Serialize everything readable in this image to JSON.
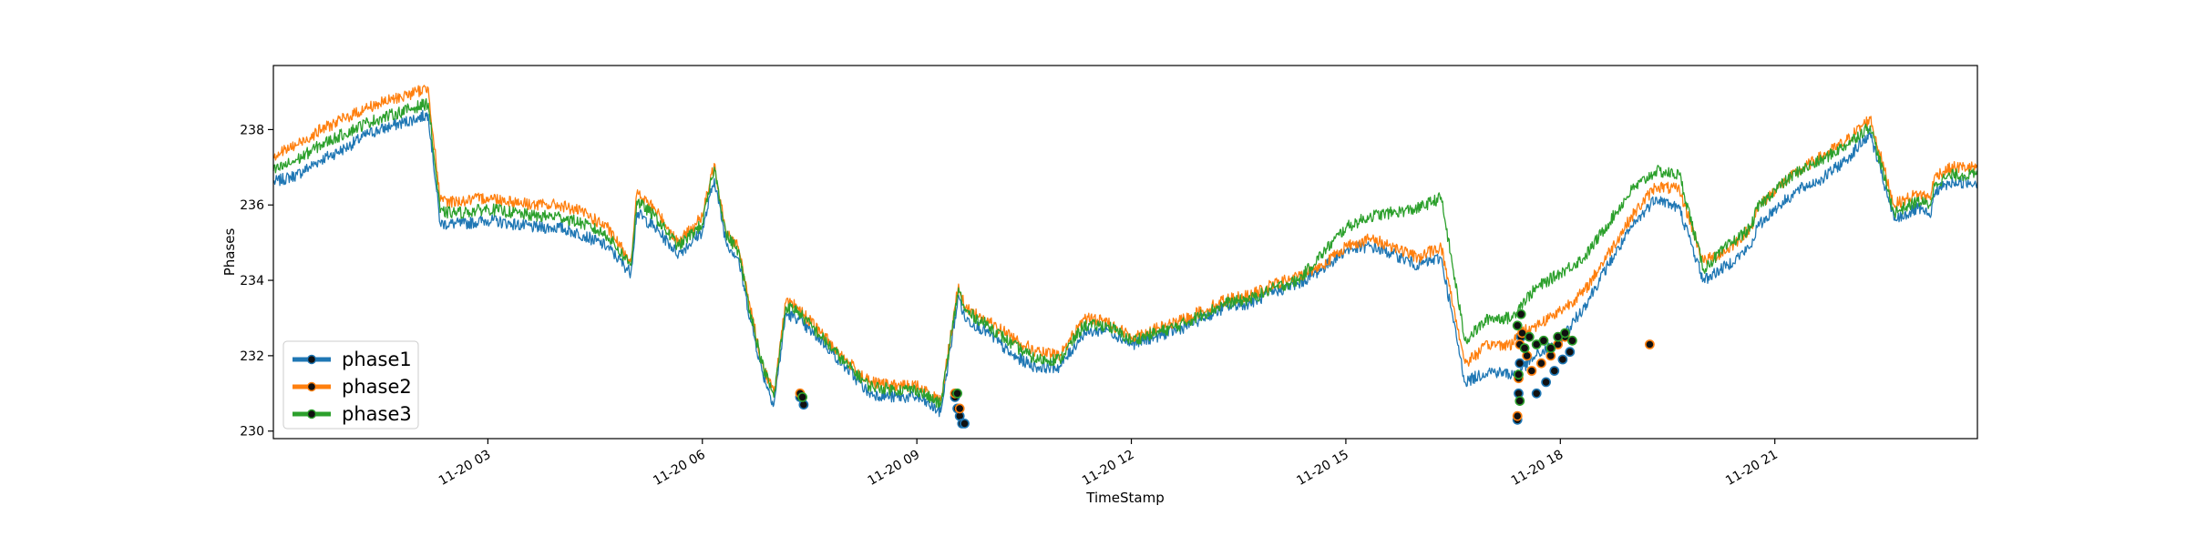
{
  "chart_data": {
    "type": "line",
    "xlabel": "TimeStamp",
    "ylabel": "Phases",
    "xlim": [
      "2021-11-20 00:00",
      "2021-11-20 23:50"
    ],
    "ylim": [
      229.8,
      239.7
    ],
    "x_ticks": [
      {
        "t": "2021-11-20 03:00",
        "label": "11-20 03"
      },
      {
        "t": "2021-11-20 06:00",
        "label": "11-20 06"
      },
      {
        "t": "2021-11-20 09:00",
        "label": "11-20 09"
      },
      {
        "t": "2021-11-20 12:00",
        "label": "11-20 12"
      },
      {
        "t": "2021-11-20 15:00",
        "label": "11-20 15"
      },
      {
        "t": "2021-11-20 18:00",
        "label": "11-20 18"
      },
      {
        "t": "2021-11-20 21:00",
        "label": "11-20 21"
      }
    ],
    "y_ticks": [
      230,
      232,
      234,
      236,
      238
    ],
    "grid": false,
    "legend_position": "lower-left",
    "x": [
      "00:00",
      "00:20",
      "00:40",
      "01:00",
      "01:20",
      "01:40",
      "02:00",
      "02:10",
      "02:20",
      "02:40",
      "03:00",
      "03:20",
      "03:40",
      "04:00",
      "04:20",
      "04:40",
      "05:00",
      "05:05",
      "05:20",
      "05:40",
      "06:00",
      "06:10",
      "06:20",
      "06:30",
      "06:40",
      "06:50",
      "07:00",
      "07:10",
      "07:20",
      "07:25",
      "07:40",
      "08:00",
      "08:20",
      "08:40",
      "09:00",
      "09:20",
      "09:35",
      "09:40",
      "10:00",
      "10:20",
      "10:40",
      "11:00",
      "11:20",
      "11:40",
      "12:00",
      "12:20",
      "12:40",
      "13:00",
      "13:20",
      "13:40",
      "14:00",
      "14:20",
      "14:40",
      "15:00",
      "15:20",
      "15:40",
      "16:00",
      "16:20",
      "16:40",
      "17:00",
      "17:20",
      "17:25",
      "17:40",
      "18:00",
      "18:20",
      "18:40",
      "19:00",
      "19:20",
      "19:40",
      "20:00",
      "20:20",
      "20:40",
      "20:45",
      "21:00",
      "21:20",
      "21:40",
      "22:00",
      "22:20",
      "22:40",
      "23:00",
      "23:10",
      "23:15",
      "23:30",
      "23:50"
    ],
    "series": [
      {
        "name": "phase1",
        "color": "#1f77b4",
        "values": [
          236.6,
          236.8,
          237.2,
          237.5,
          237.9,
          238.1,
          238.3,
          238.4,
          235.5,
          235.5,
          235.6,
          235.5,
          235.4,
          235.4,
          235.2,
          234.9,
          234.2,
          235.8,
          235.4,
          234.7,
          235.3,
          236.7,
          235.0,
          234.6,
          233.0,
          231.6,
          230.7,
          233.1,
          233.0,
          232.8,
          232.4,
          231.7,
          231.0,
          230.9,
          230.9,
          230.5,
          233.6,
          233.0,
          232.6,
          232.0,
          231.7,
          231.7,
          232.6,
          232.7,
          232.3,
          232.5,
          232.7,
          233.0,
          233.3,
          233.4,
          233.7,
          233.9,
          234.3,
          234.8,
          234.9,
          234.7,
          234.4,
          234.6,
          231.3,
          231.6,
          231.5,
          231.6,
          232.0,
          232.4,
          233.3,
          234.4,
          235.4,
          236.2,
          235.9,
          234.0,
          234.4,
          234.9,
          235.4,
          235.9,
          236.4,
          236.7,
          237.2,
          237.9,
          235.6,
          235.9,
          235.7,
          236.4,
          236.6,
          236.6
        ]
      },
      {
        "name": "phase2",
        "color": "#ff7f0e",
        "values": [
          237.3,
          237.6,
          238.0,
          238.3,
          238.6,
          238.8,
          239.0,
          239.1,
          236.1,
          236.1,
          236.2,
          236.1,
          236.0,
          236.0,
          235.8,
          235.4,
          234.5,
          236.3,
          235.9,
          235.0,
          235.7,
          237.1,
          235.3,
          234.9,
          233.3,
          231.8,
          231.0,
          233.4,
          233.3,
          233.1,
          232.6,
          231.9,
          231.3,
          231.2,
          231.2,
          230.8,
          233.9,
          233.3,
          232.9,
          232.5,
          232.1,
          232.0,
          233.0,
          232.9,
          232.5,
          232.7,
          232.9,
          233.2,
          233.5,
          233.6,
          233.9,
          234.1,
          234.4,
          234.9,
          235.1,
          234.9,
          234.6,
          234.9,
          231.8,
          232.3,
          232.3,
          232.6,
          232.8,
          233.2,
          233.7,
          234.7,
          235.7,
          236.5,
          236.4,
          234.5,
          234.8,
          235.4,
          235.9,
          236.4,
          236.9,
          237.3,
          237.7,
          238.3,
          236.0,
          236.3,
          236.2,
          236.8,
          237.0,
          237.0
        ]
      },
      {
        "name": "phase3",
        "color": "#2ca02c",
        "values": [
          236.9,
          237.2,
          237.6,
          237.9,
          238.2,
          238.4,
          238.6,
          238.7,
          235.8,
          235.8,
          235.9,
          235.8,
          235.7,
          235.7,
          235.5,
          235.2,
          234.4,
          236.1,
          235.7,
          234.9,
          235.5,
          237.0,
          235.2,
          234.8,
          233.2,
          231.8,
          230.9,
          233.3,
          233.2,
          233.0,
          232.5,
          231.8,
          231.2,
          231.1,
          231.1,
          230.7,
          233.8,
          233.2,
          232.8,
          232.3,
          231.9,
          231.9,
          232.8,
          232.8,
          232.4,
          232.6,
          232.8,
          233.1,
          233.4,
          233.5,
          233.8,
          234.0,
          234.7,
          235.4,
          235.7,
          235.8,
          235.9,
          236.2,
          232.4,
          233.0,
          233.0,
          233.3,
          233.8,
          234.2,
          234.6,
          235.5,
          236.4,
          236.9,
          236.8,
          234.3,
          234.9,
          235.4,
          235.9,
          236.4,
          236.9,
          237.2,
          237.6,
          238.1,
          235.8,
          236.1,
          236.0,
          236.6,
          236.8,
          236.8
        ]
      }
    ],
    "markers": [
      {
        "series": "phase1",
        "x": [
          "07:22",
          "07:25",
          "09:32",
          "09:34",
          "09:36",
          "09:38",
          "09:40",
          "17:24",
          "17:25",
          "17:26",
          "17:27",
          "17:40",
          "17:48",
          "17:55",
          "18:02",
          "18:08"
        ],
        "values": [
          230.9,
          230.7,
          230.9,
          230.6,
          230.4,
          230.2,
          230.2,
          230.3,
          231.0,
          231.8,
          232.5,
          231.0,
          231.3,
          231.6,
          231.9,
          232.1
        ]
      },
      {
        "series": "phase2",
        "x": [
          "07:22",
          "09:32",
          "09:36",
          "17:24",
          "17:25",
          "17:26",
          "17:28",
          "17:32",
          "17:36",
          "17:44",
          "17:52",
          "17:58",
          "18:04",
          "19:15"
        ],
        "values": [
          231.0,
          231.0,
          230.6,
          230.4,
          231.4,
          232.3,
          232.6,
          232.0,
          231.6,
          231.8,
          232.0,
          232.3,
          232.5,
          232.3
        ]
      },
      {
        "series": "phase3",
        "x": [
          "07:24",
          "09:34",
          "17:24",
          "17:25",
          "17:26",
          "17:27",
          "17:30",
          "17:34",
          "17:40",
          "17:46",
          "17:52",
          "17:58",
          "18:04",
          "18:10"
        ],
        "values": [
          230.9,
          231.0,
          232.8,
          231.5,
          230.8,
          233.1,
          232.2,
          232.5,
          232.3,
          232.4,
          232.2,
          232.5,
          232.6,
          232.4
        ]
      }
    ]
  }
}
